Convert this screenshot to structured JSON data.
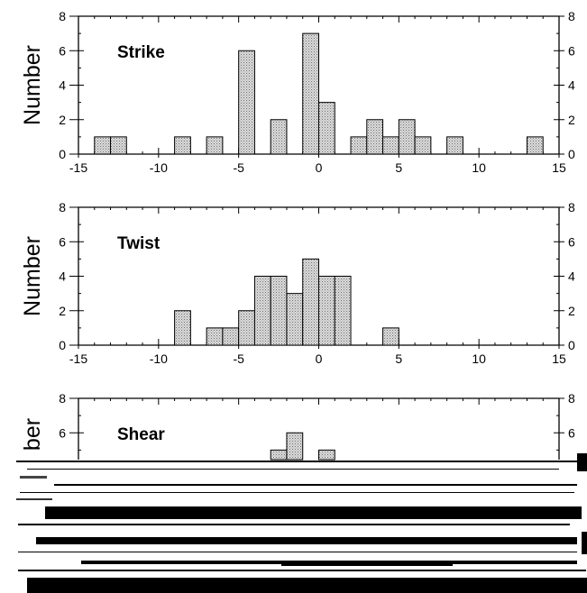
{
  "chart_data": [
    {
      "type": "bar",
      "title": "Strike",
      "ylabel": "Number",
      "xlim": [
        -15,
        15
      ],
      "ylim": [
        0,
        8
      ],
      "bin_width": 1,
      "xticks": [
        "-15",
        "-10",
        "-5",
        "0",
        "5",
        "10",
        "15"
      ],
      "yticks": [
        "0",
        "2",
        "4",
        "6",
        "8"
      ],
      "bins": [
        {
          "x": -14,
          "value": 1
        },
        {
          "x": -13,
          "value": 1
        },
        {
          "x": -9,
          "value": 1
        },
        {
          "x": -7,
          "value": 1
        },
        {
          "x": -5,
          "value": 6
        },
        {
          "x": -3,
          "value": 2
        },
        {
          "x": -1,
          "value": 7
        },
        {
          "x": 0,
          "value": 3
        },
        {
          "x": 2,
          "value": 1
        },
        {
          "x": 3,
          "value": 2
        },
        {
          "x": 4,
          "value": 1
        },
        {
          "x": 5,
          "value": 2
        },
        {
          "x": 6,
          "value": 1
        },
        {
          "x": 8,
          "value": 1
        },
        {
          "x": 13,
          "value": 1
        }
      ]
    },
    {
      "type": "bar",
      "title": "Twist",
      "ylabel": "Number",
      "xlim": [
        -15,
        15
      ],
      "ylim": [
        0,
        8
      ],
      "bin_width": 1,
      "xticks": [
        "-15",
        "-10",
        "-5",
        "0",
        "5",
        "10",
        "15"
      ],
      "yticks": [
        "0",
        "2",
        "4",
        "6",
        "8"
      ],
      "bins": [
        {
          "x": -9,
          "value": 2
        },
        {
          "x": -7,
          "value": 1
        },
        {
          "x": -6,
          "value": 1
        },
        {
          "x": -5,
          "value": 2
        },
        {
          "x": -4,
          "value": 4
        },
        {
          "x": -3,
          "value": 4
        },
        {
          "x": -2,
          "value": 3
        },
        {
          "x": -1,
          "value": 5
        },
        {
          "x": 0,
          "value": 4
        },
        {
          "x": 1,
          "value": 4
        },
        {
          "x": 4,
          "value": 1
        }
      ]
    },
    {
      "type": "bar",
      "title": "Shear",
      "ylabel": "ber",
      "xlim": [
        -15,
        15
      ],
      "ylim": [
        0,
        8
      ],
      "bin_width": 1,
      "yticks": [
        "6",
        "8"
      ],
      "bins": [
        {
          "x": -3,
          "value": 5
        },
        {
          "x": -2,
          "value": 6
        },
        {
          "x": 0,
          "value": 5
        }
      ]
    }
  ]
}
